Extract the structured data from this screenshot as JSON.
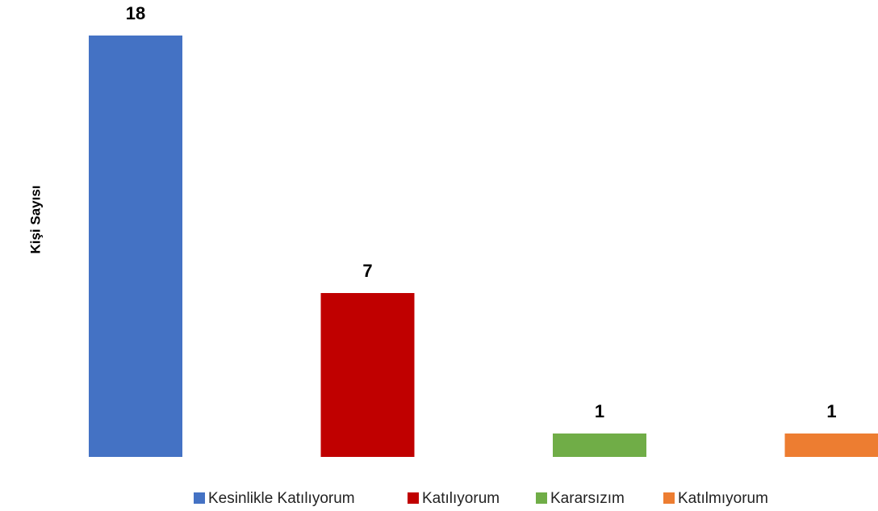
{
  "chart_data": {
    "type": "bar",
    "y_label": "Kişi Sayısı",
    "categories": [
      "Kesinlikle Katılıyorum",
      "Katılıyorum",
      "Kararsızım",
      "Katılmıyorum"
    ],
    "values": [
      18,
      7,
      1,
      1
    ],
    "colors": [
      "#4472c4",
      "#c00000",
      "#70ad47",
      "#ed7d31"
    ],
    "ylim": [
      0,
      18
    ],
    "legend": "bottom"
  }
}
